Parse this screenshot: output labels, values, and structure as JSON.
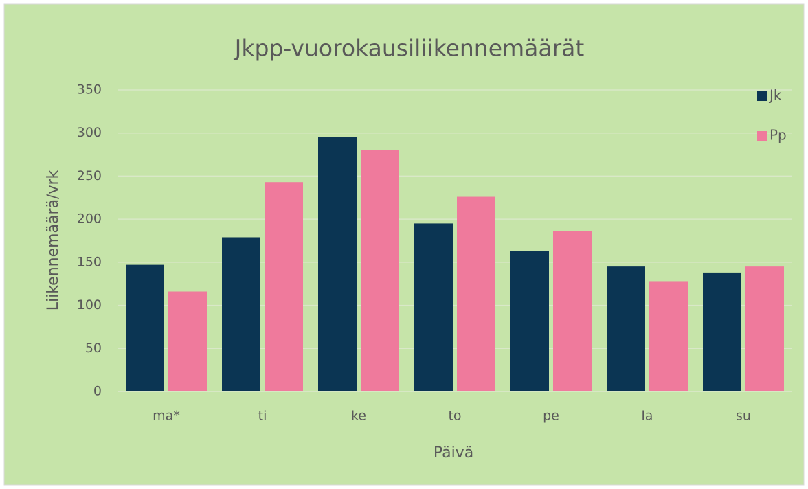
{
  "chart_data": {
    "type": "bar",
    "title": "Jkpp-vuorokausiliikennemäärät",
    "x_label": "Päivä",
    "y_label": "Liikennemäärä/vrk",
    "categories": [
      "ma*",
      "ti",
      "ke",
      "to",
      "pe",
      "la",
      "su"
    ],
    "series": [
      {
        "name": "Jk",
        "color": "#0b3553",
        "values": [
          147,
          179,
          295,
          195,
          163,
          145,
          138
        ]
      },
      {
        "name": "Pp",
        "color": "#ef7a9c",
        "values": [
          116,
          243,
          280,
          226,
          186,
          128,
          145
        ]
      }
    ],
    "ylim": [
      0,
      350
    ],
    "yticks": [
      0,
      50,
      100,
      150,
      200,
      250,
      300,
      350
    ],
    "grid": true,
    "legend": "top-right"
  }
}
